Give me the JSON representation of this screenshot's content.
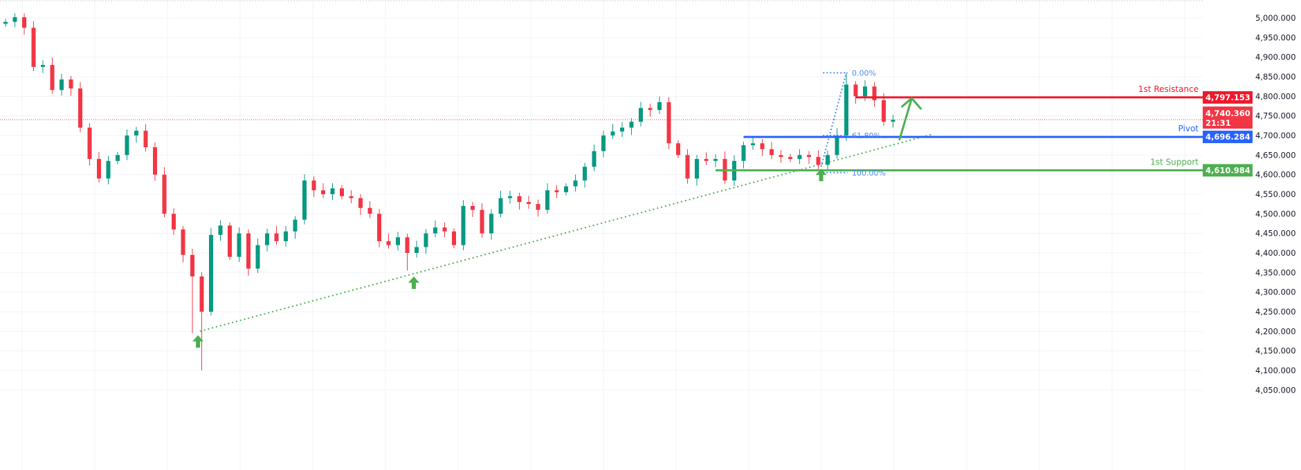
{
  "chart_data": {
    "type": "candlestick",
    "ylim": [
      4050,
      5030
    ],
    "grid": true,
    "y_ticks": [
      "5,000.000",
      "4,950.000",
      "4,900.000",
      "4,850.000",
      "4,800.000",
      "4,750.000",
      "4,700.000",
      "4,650.000",
      "4,600.000",
      "4,550.000",
      "4,500.000",
      "4,450.000",
      "4,400.000",
      "4,350.000",
      "4,300.000",
      "4,250.000",
      "4,200.000",
      "4,150.000",
      "4,100.000",
      "4,050.000"
    ],
    "y_tick_values": [
      5000,
      4950,
      4900,
      4850,
      4800,
      4750,
      4700,
      4650,
      4600,
      4550,
      4500,
      4450,
      4400,
      4350,
      4300,
      4250,
      4200,
      4150,
      4100,
      4050
    ],
    "first_open": 4985,
    "closes": [
      4990,
      5002,
      4975,
      4875,
      4880,
      4816,
      4843,
      4820,
      4720,
      4640,
      4590,
      4635,
      4650,
      4700,
      4712,
      4670,
      4600,
      4500,
      4460,
      4395,
      4340,
      4250,
      4446,
      4470,
      4390,
      4450,
      4360,
      4420,
      4450,
      4430,
      4455,
      4485,
      4585,
      4560,
      4550,
      4565,
      4545,
      4540,
      4515,
      4500,
      4430,
      4420,
      4440,
      4400,
      4415,
      4450,
      4465,
      4455,
      4420,
      4520,
      4510,
      4450,
      4500,
      4540,
      4545,
      4530,
      4525,
      4510,
      4560,
      4555,
      4570,
      4585,
      4620,
      4660,
      4700,
      4710,
      4720,
      4735,
      4770,
      4765,
      4785,
      4680,
      4650,
      4590,
      4640,
      4635,
      4640,
      4585,
      4635,
      4675,
      4680,
      4665,
      4650,
      4645,
      4640,
      4650,
      4645,
      4625,
      4650,
      4700,
      4830,
      4800,
      4825,
      4790,
      4735,
      4740
    ],
    "low_overrides": {
      "21": 4100,
      "20": 4195,
      "43": 4355
    },
    "high_overrides": {
      "90": 4860,
      "1": 5012,
      "70": 4800
    },
    "colors": {
      "up": "#089981",
      "down": "#f23645"
    },
    "current_price": {
      "value": 4740.36,
      "label": "4,740.360",
      "countdown": "21:31",
      "color": "#f23645"
    },
    "levels": [
      {
        "name": "1st Resistance",
        "value": 4797.153,
        "label": "4,797.153",
        "color": "#f0182b",
        "start_index": 91
      },
      {
        "name": "Pivot",
        "value": 4696.284,
        "label": "4,696.284",
        "color": "#2962ff",
        "start_index": 79
      },
      {
        "name": "1st Support",
        "value": 4610.984,
        "label": "4,610.984",
        "color": "#4caf50",
        "start_index": 76
      }
    ],
    "trendline": {
      "from": {
        "index": 20.8,
        "value": 4200
      },
      "to": {
        "index": 99.2,
        "value": 4703
      },
      "color": "#4caf50"
    },
    "fibonacci": {
      "color": "#4a8cf0",
      "start_index": 87.5,
      "end_index": 90,
      "levels": [
        {
          "label": "0.00%",
          "value": 4860
        },
        {
          "label": "61.80%",
          "value": 4700
        },
        {
          "label": "100.00%",
          "value": 4605
        }
      ]
    },
    "markers": [
      {
        "type": "up-arrow",
        "index": 20.6,
        "value": 4190
      },
      {
        "type": "up-arrow",
        "index": 43.7,
        "value": 4340
      },
      {
        "type": "up-arrow",
        "index": 87.3,
        "value": 4615
      }
    ],
    "projection_arrow": {
      "from": {
        "index": 95.7,
        "value": 4690
      },
      "to": {
        "index": 97,
        "value": 4795
      },
      "color": "#4caf50"
    }
  }
}
